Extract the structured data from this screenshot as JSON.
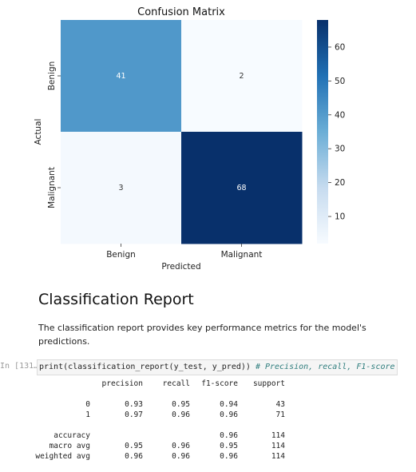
{
  "chart_data": {
    "type": "heatmap",
    "title": "Confusion Matrix",
    "xlabel": "Predicted",
    "ylabel": "Actual",
    "x_categories": [
      "Benign",
      "Malignant"
    ],
    "y_categories": [
      "Benign",
      "Malignant"
    ],
    "values": [
      [
        41,
        2
      ],
      [
        3,
        68
      ]
    ],
    "colorbar": {
      "ticks": [
        10,
        20,
        30,
        40,
        50,
        60
      ],
      "range": [
        2,
        68
      ],
      "colormap": "Blues"
    }
  },
  "report": {
    "title": "Classification Report",
    "description": "The classification report provides key performance metrics for the model's predictions."
  },
  "code_cell": {
    "prompt": "In [131…",
    "code": "print(classification_report(y_test, y_pred))",
    "comment": "# Precision, recall, F1-score"
  },
  "output": {
    "header": [
      "",
      "precision",
      "recall",
      "f1-score",
      "support"
    ],
    "rows": [
      [
        "0",
        "0.93",
        "0.95",
        "0.94",
        "43"
      ],
      [
        "1",
        "0.97",
        "0.96",
        "0.96",
        "71"
      ],
      [
        "",
        "",
        "",
        "",
        ""
      ],
      [
        "accuracy",
        "",
        "",
        "0.96",
        "114"
      ],
      [
        "macro avg",
        "0.95",
        "0.96",
        "0.95",
        "114"
      ],
      [
        "weighted avg",
        "0.96",
        "0.96",
        "0.96",
        "114"
      ]
    ]
  }
}
